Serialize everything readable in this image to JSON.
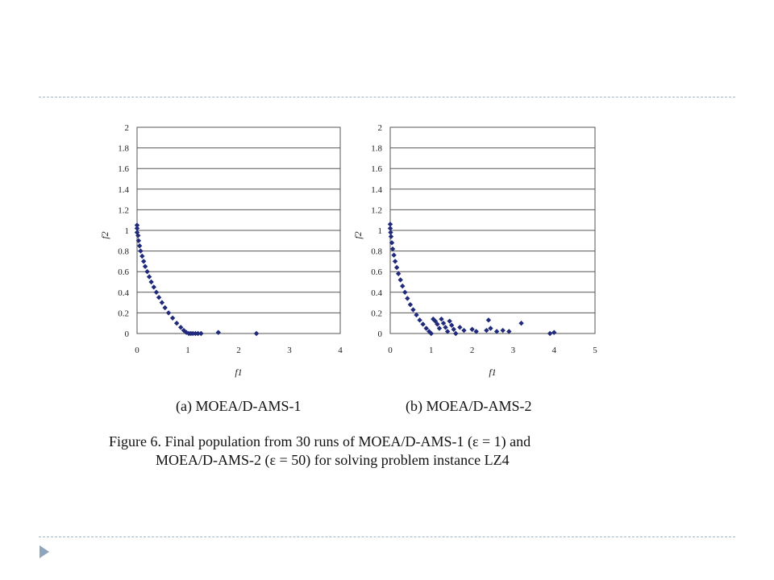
{
  "figure": {
    "subcaption_a": "(a) MOEA/D-AMS-1",
    "subcaption_b": "(b) MOEA/D-AMS-2",
    "caption_line1": "Figure 6.   Final population from 30 runs of MOEA/D-AMS-1 (ε = 1) and",
    "caption_line2": "MOEA/D-AMS-2 (ε = 50) for solving problem instance LZ4"
  },
  "colors": {
    "marker": "#1f2a7a",
    "grid": "#555555",
    "dash": "#9fb5c8"
  },
  "chart_data": [
    {
      "type": "scatter",
      "title": "(a) MOEA/D-AMS-1",
      "xlabel": "f1",
      "ylabel": "f2",
      "xlim": [
        0,
        4
      ],
      "ylim": [
        0,
        2
      ],
      "x_ticks": [
        "0",
        "1",
        "2",
        "3",
        "4"
      ],
      "y_ticks": [
        "0",
        "0.2",
        "0.4",
        "0.6",
        "0.8",
        "1",
        "1.2",
        "1.4",
        "1.6",
        "1.8",
        "2"
      ],
      "grid": "horizontal",
      "series": [
        {
          "marker": "diamond",
          "points": [
            [
              0.0,
              1.05
            ],
            [
              0.0,
              1.02
            ],
            [
              0.0,
              0.98
            ],
            [
              0.02,
              0.95
            ],
            [
              0.03,
              0.9
            ],
            [
              0.05,
              0.85
            ],
            [
              0.07,
              0.8
            ],
            [
              0.1,
              0.75
            ],
            [
              0.13,
              0.7
            ],
            [
              0.16,
              0.65
            ],
            [
              0.2,
              0.6
            ],
            [
              0.24,
              0.55
            ],
            [
              0.28,
              0.5
            ],
            [
              0.33,
              0.45
            ],
            [
              0.38,
              0.4
            ],
            [
              0.43,
              0.35
            ],
            [
              0.49,
              0.3
            ],
            [
              0.55,
              0.25
            ],
            [
              0.62,
              0.2
            ],
            [
              0.7,
              0.15
            ],
            [
              0.78,
              0.1
            ],
            [
              0.86,
              0.06
            ],
            [
              0.92,
              0.03
            ],
            [
              0.97,
              0.01
            ],
            [
              1.02,
              0.0
            ],
            [
              1.06,
              0.0
            ],
            [
              1.1,
              0.0
            ],
            [
              1.15,
              0.0
            ],
            [
              1.2,
              0.0
            ],
            [
              1.26,
              0.0
            ],
            [
              1.6,
              0.01
            ],
            [
              2.35,
              0.0
            ]
          ]
        }
      ]
    },
    {
      "type": "scatter",
      "title": "(b) MOEA/D-AMS-2",
      "xlabel": "f1",
      "ylabel": "f2",
      "xlim": [
        0,
        5
      ],
      "ylim": [
        0,
        2
      ],
      "x_ticks": [
        "0",
        "1",
        "2",
        "3",
        "4",
        "5"
      ],
      "y_ticks": [
        "0",
        "0.2",
        "0.4",
        "0.6",
        "0.8",
        "1",
        "1.2",
        "1.4",
        "1.6",
        "1.8",
        "2"
      ],
      "grid": "horizontal",
      "series": [
        {
          "marker": "diamond",
          "points": [
            [
              0.0,
              1.06
            ],
            [
              0.0,
              1.02
            ],
            [
              0.01,
              0.98
            ],
            [
              0.02,
              0.94
            ],
            [
              0.04,
              0.88
            ],
            [
              0.06,
              0.82
            ],
            [
              0.09,
              0.76
            ],
            [
              0.12,
              0.7
            ],
            [
              0.16,
              0.64
            ],
            [
              0.2,
              0.58
            ],
            [
              0.25,
              0.52
            ],
            [
              0.3,
              0.46
            ],
            [
              0.36,
              0.4
            ],
            [
              0.42,
              0.34
            ],
            [
              0.49,
              0.28
            ],
            [
              0.56,
              0.23
            ],
            [
              0.64,
              0.18
            ],
            [
              0.72,
              0.13
            ],
            [
              0.8,
              0.09
            ],
            [
              0.88,
              0.05
            ],
            [
              0.95,
              0.02
            ],
            [
              1.0,
              0.0
            ],
            [
              1.05,
              0.14
            ],
            [
              1.1,
              0.12
            ],
            [
              1.15,
              0.09
            ],
            [
              1.2,
              0.05
            ],
            [
              1.25,
              0.14
            ],
            [
              1.3,
              0.1
            ],
            [
              1.35,
              0.06
            ],
            [
              1.4,
              0.02
            ],
            [
              1.45,
              0.12
            ],
            [
              1.5,
              0.08
            ],
            [
              1.55,
              0.04
            ],
            [
              1.6,
              0.0
            ],
            [
              1.7,
              0.06
            ],
            [
              1.8,
              0.03
            ],
            [
              2.0,
              0.04
            ],
            [
              2.1,
              0.02
            ],
            [
              2.35,
              0.03
            ],
            [
              2.4,
              0.13
            ],
            [
              2.45,
              0.05
            ],
            [
              2.6,
              0.02
            ],
            [
              2.75,
              0.03
            ],
            [
              2.9,
              0.02
            ],
            [
              3.2,
              0.1
            ],
            [
              3.9,
              0.0
            ],
            [
              4.0,
              0.01
            ]
          ]
        }
      ]
    }
  ]
}
